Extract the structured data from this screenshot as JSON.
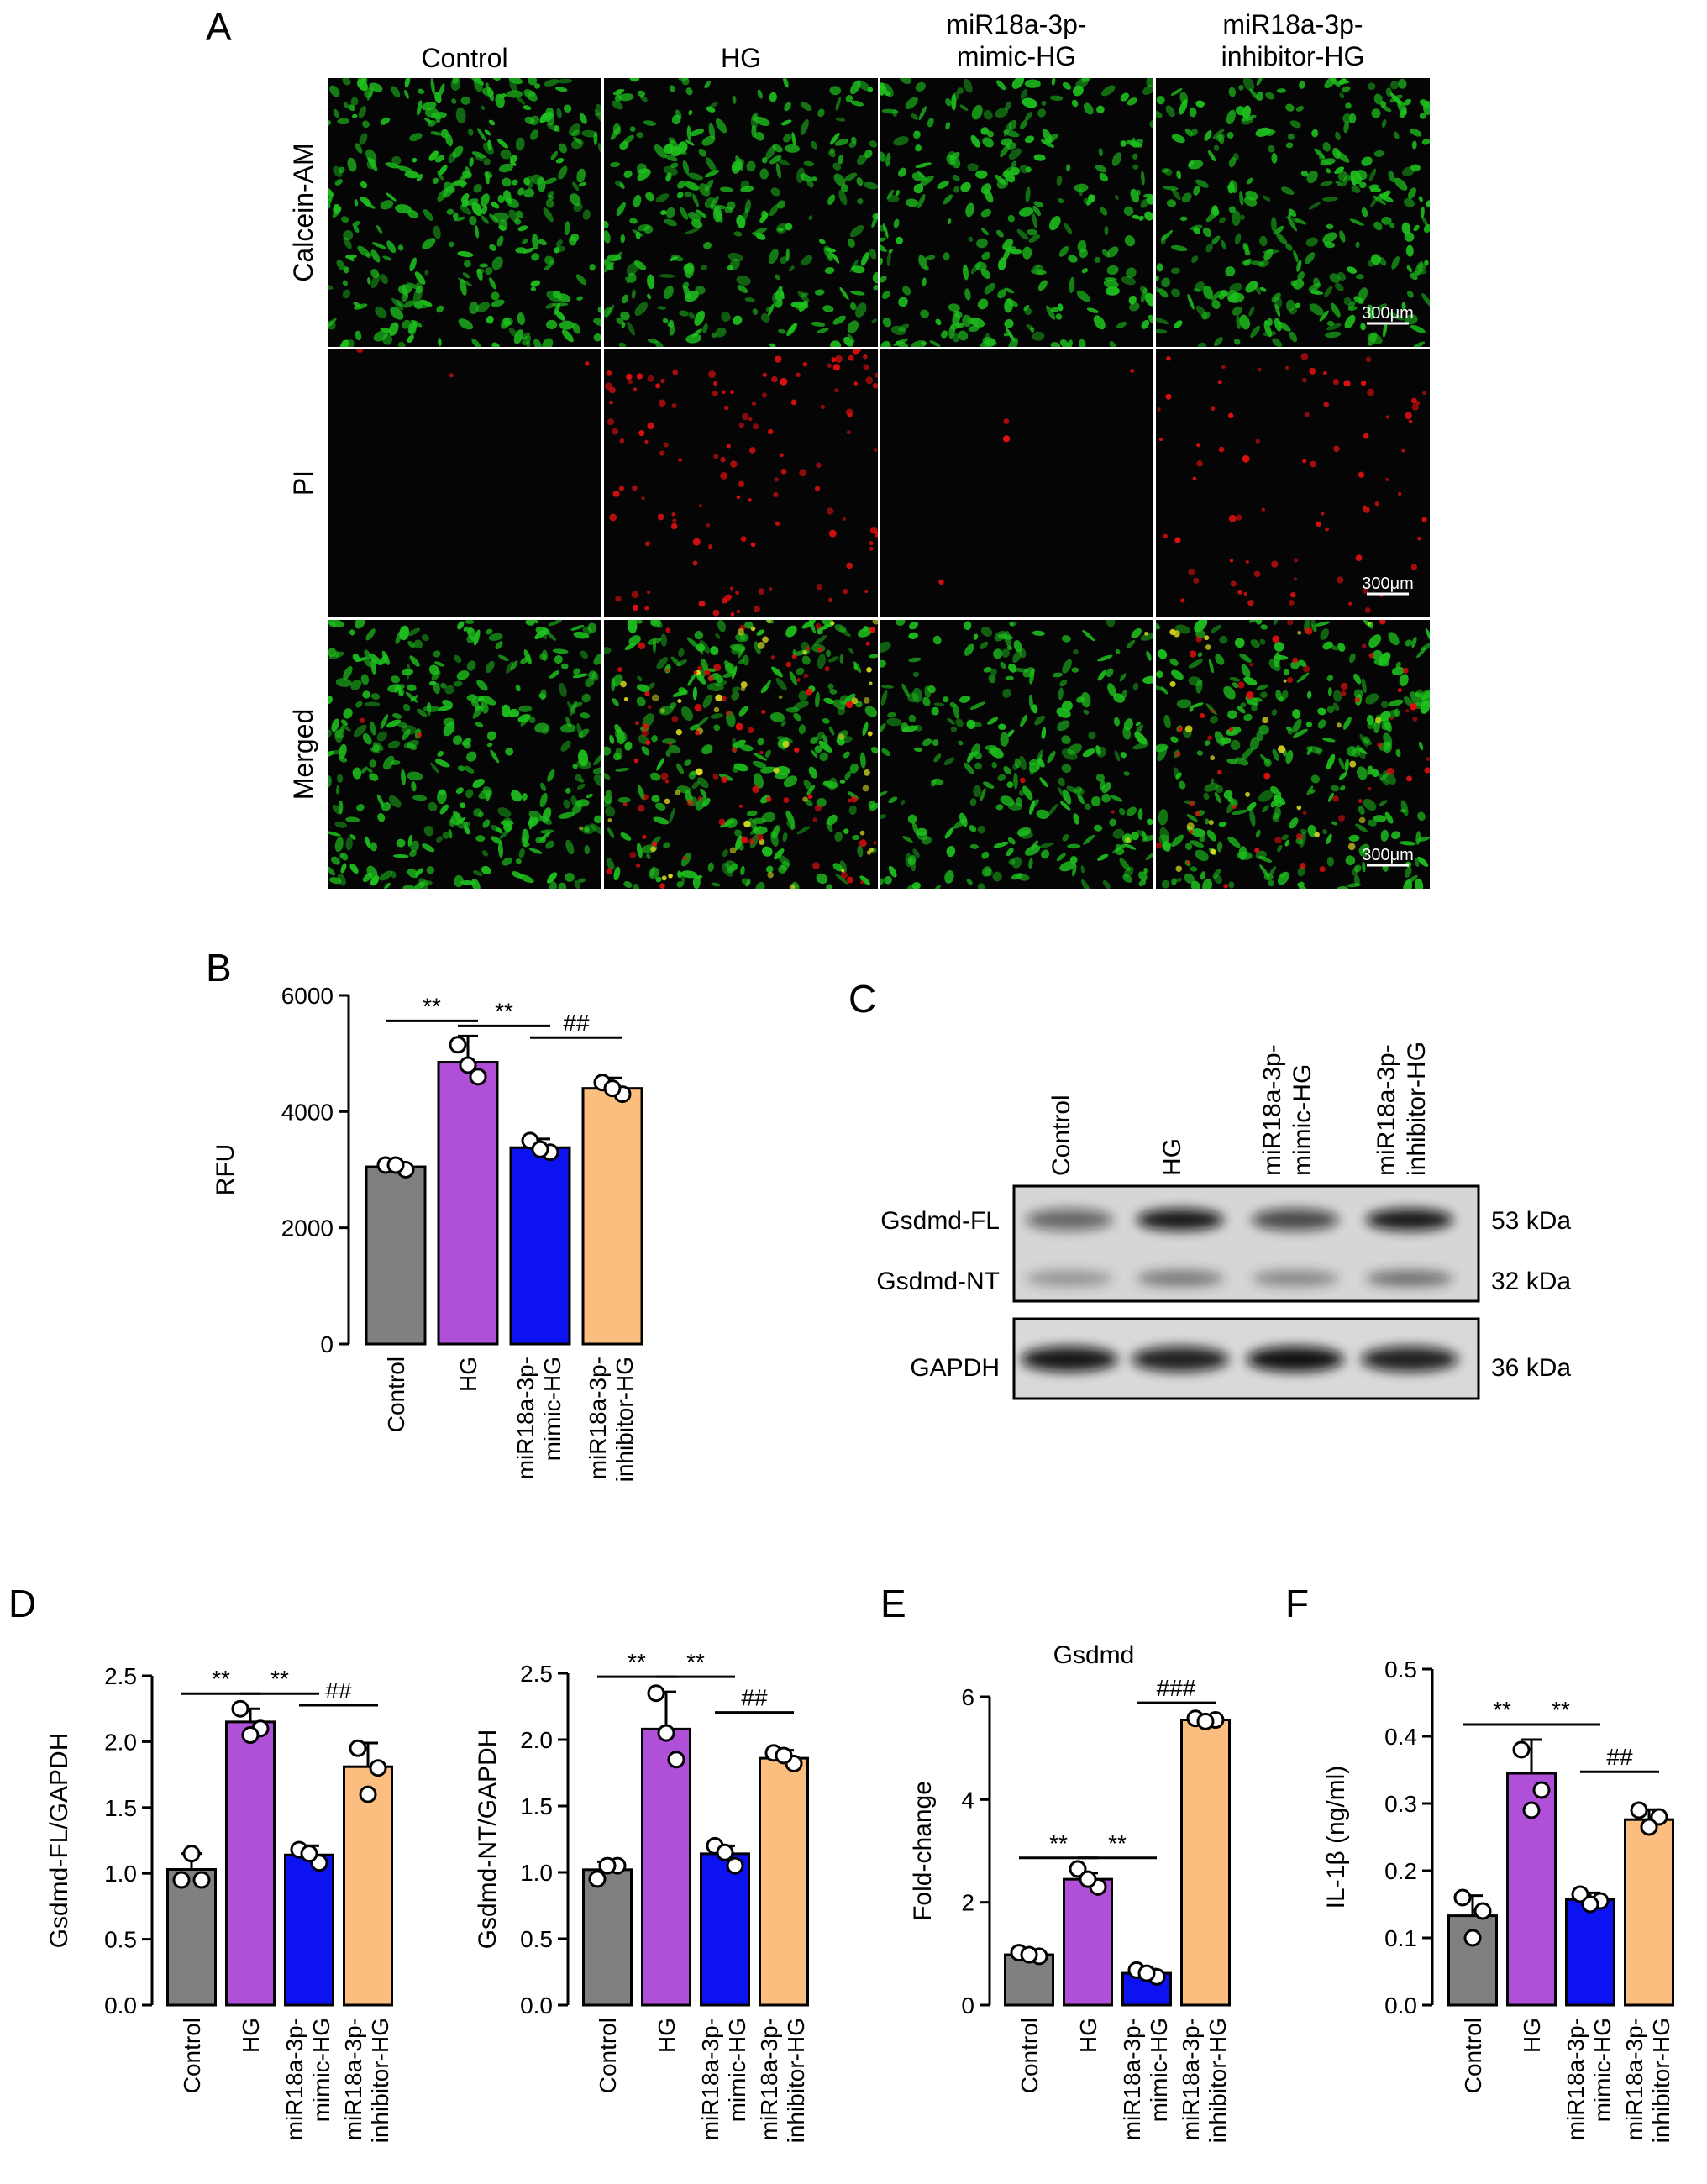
{
  "colors": {
    "control": "#808080",
    "hg": "#b04fd8",
    "mimic": "#0c12f0",
    "inhibitor": "#fbbe7e",
    "calcein": "#1ec21e",
    "pi": "#e01010",
    "merged_yellow": "#d8d820"
  },
  "panel_labels": [
    "A",
    "B",
    "C",
    "D",
    "E",
    "F"
  ],
  "groups": [
    {
      "lines": [
        "Control"
      ]
    },
    {
      "lines": [
        "HG"
      ]
    },
    {
      "lines": [
        "miR18a-3p-",
        "mimic-HG"
      ]
    },
    {
      "lines": [
        "miR18a-3p-",
        "inhibitor-HG"
      ]
    }
  ],
  "panel_a": {
    "row_labels": [
      "Calcein-AM",
      "PI",
      "Merged"
    ],
    "scale_bar": "300μm"
  },
  "panel_c": {
    "bands": [
      {
        "name": "Gsdmd-FL",
        "size": "53 kDa"
      },
      {
        "name": "Gsdmd-NT",
        "size": "32 kDa"
      },
      {
        "name": "GAPDH",
        "size": "36 kDa"
      }
    ]
  },
  "chart_data": [
    {
      "panel": "B",
      "type": "bar",
      "categories": [
        "Control",
        "HG",
        "miR18a-3p-mimic-HG",
        "miR18a-3p-inhibitor-HG"
      ],
      "values": [
        3050,
        4850,
        3380,
        4400
      ],
      "errors": [
        80,
        450,
        150,
        180
      ],
      "points": [
        [
          3080,
          3000,
          3080
        ],
        [
          5150,
          4600,
          4800
        ],
        [
          3500,
          3300,
          3350
        ],
        [
          4500,
          4300,
          4400
        ]
      ],
      "ylabel": "RFU",
      "ylim": [
        0,
        6000
      ],
      "yticks": [
        "0",
        "2000",
        "4000",
        "6000"
      ],
      "significance": [
        {
          "from": 0,
          "to": 1,
          "label": "**"
        },
        {
          "from": 1,
          "to": 2,
          "label": "**"
        },
        {
          "from": 2,
          "to": 3,
          "label": "##"
        }
      ]
    },
    {
      "panel": "D1",
      "type": "bar",
      "categories": [
        "Control",
        "HG",
        "miR18a-3p-mimic-HG",
        "miR18a-3p-inhibitor-HG"
      ],
      "values": [
        1.03,
        2.15,
        1.14,
        1.81
      ],
      "errors": [
        0.12,
        0.1,
        0.07,
        0.18
      ],
      "points": [
        [
          0.95,
          0.95,
          1.15
        ],
        [
          2.25,
          2.1,
          2.05
        ],
        [
          1.18,
          1.08,
          1.15
        ],
        [
          1.95,
          1.8,
          1.6
        ]
      ],
      "ylabel": "Gsdmd-FL/GAPDH",
      "ylim": [
        0,
        2.5
      ],
      "yticks": [
        "0.0",
        "0.5",
        "1.0",
        "1.5",
        "2.0",
        "2.5"
      ],
      "significance": [
        {
          "from": 0,
          "to": 1,
          "label": "**"
        },
        {
          "from": 1,
          "to": 2,
          "label": "**"
        },
        {
          "from": 2,
          "to": 3,
          "label": "##"
        }
      ]
    },
    {
      "panel": "D2",
      "type": "bar",
      "categories": [
        "Control",
        "HG",
        "miR18a-3p-mimic-HG",
        "miR18a-3p-inhibitor-HG"
      ],
      "values": [
        1.02,
        2.08,
        1.14,
        1.86
      ],
      "errors": [
        0.06,
        0.28,
        0.06,
        0.06
      ],
      "points": [
        [
          0.95,
          1.05,
          1.05
        ],
        [
          2.35,
          1.85,
          2.05
        ],
        [
          1.2,
          1.05,
          1.15
        ],
        [
          1.9,
          1.82,
          1.88
        ]
      ],
      "ylabel": "Gsdmd-NT/GAPDH",
      "ylim": [
        0,
        2.5
      ],
      "yticks": [
        "0.0",
        "0.5",
        "1.0",
        "1.5",
        "2.0",
        "2.5"
      ],
      "significance": [
        {
          "from": 0,
          "to": 1,
          "label": "**"
        },
        {
          "from": 1,
          "to": 2,
          "label": "**"
        },
        {
          "from": 2,
          "to": 3,
          "label": "##"
        }
      ]
    },
    {
      "panel": "E",
      "type": "bar",
      "title": "Gsdmd",
      "categories": [
        "Control",
        "HG",
        "miR18a-3p-mimic-HG",
        "miR18a-3p-inhibitor-HG"
      ],
      "values": [
        0.98,
        2.45,
        0.62,
        5.55
      ],
      "errors": [
        0.04,
        0.12,
        0.08,
        0.04
      ],
      "points": [
        [
          1.02,
          0.95,
          0.98
        ],
        [
          2.65,
          2.3,
          2.45
        ],
        [
          0.68,
          0.55,
          0.62
        ],
        [
          5.58,
          5.55,
          5.52
        ]
      ],
      "ylabel": "Fold-change",
      "ylim": [
        0,
        6
      ],
      "yticks": [
        "0",
        "2",
        "4",
        "6"
      ],
      "significance": [
        {
          "from": 0,
          "to": 1,
          "label": "**"
        },
        {
          "from": 1,
          "to": 2,
          "label": "**"
        },
        {
          "from": 2,
          "to": 3,
          "label": "###"
        }
      ]
    },
    {
      "panel": "F",
      "type": "bar",
      "categories": [
        "Control",
        "HG",
        "miR18a-3p-mimic-HG",
        "miR18a-3p-inhibitor-HG"
      ],
      "values": [
        0.133,
        0.345,
        0.157,
        0.276
      ],
      "errors": [
        0.03,
        0.05,
        0.01,
        0.015
      ],
      "points": [
        [
          0.16,
          0.14,
          0.1
        ],
        [
          0.38,
          0.32,
          0.29
        ],
        [
          0.165,
          0.155,
          0.15
        ],
        [
          0.29,
          0.28,
          0.265
        ]
      ],
      "ylabel": "IL-1β (ng/ml)",
      "ylim": [
        0,
        0.5
      ],
      "yticks": [
        "0.0",
        "0.1",
        "0.2",
        "0.3",
        "0.4",
        "0.5"
      ],
      "significance": [
        {
          "from": 0,
          "to": 1,
          "label": "**"
        },
        {
          "from": 1,
          "to": 2,
          "label": "**"
        },
        {
          "from": 2,
          "to": 3,
          "label": "##"
        }
      ]
    }
  ]
}
